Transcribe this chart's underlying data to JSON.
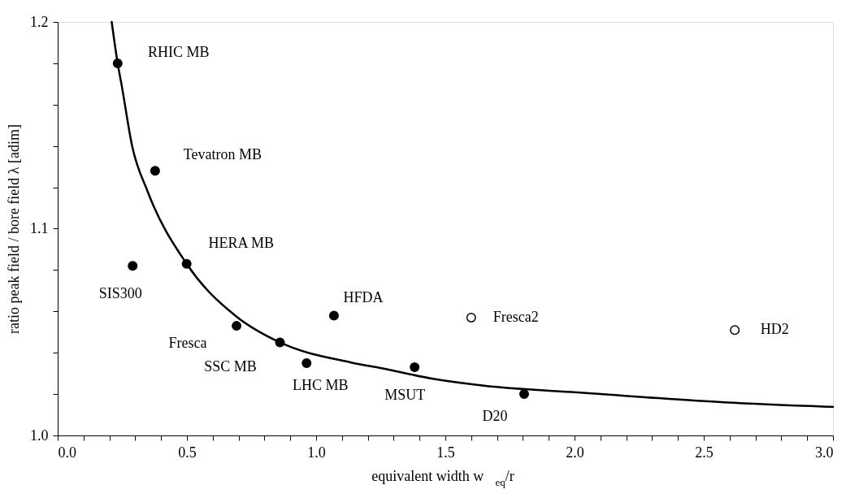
{
  "chart_data": {
    "type": "scatter",
    "xlabel": "equivalent width w$_{eq}$/r",
    "ylabel": "ratio peak field / bore field λ [adim]",
    "xlim": [
      0,
      3.0
    ],
    "ylim": [
      1.0,
      1.2
    ],
    "xticks": [
      {
        "value": 0,
        "label": "0.0"
      },
      {
        "value": 0.1,
        "label": null
      },
      {
        "value": 0.2,
        "label": null
      },
      {
        "value": 0.3,
        "label": null
      },
      {
        "value": 0.4,
        "label": null
      },
      0.5,
      {
        "value": 0.6,
        "label": null
      },
      {
        "value": 0.7,
        "label": null
      },
      {
        "value": 0.8,
        "label": null
      },
      {
        "value": 0.9,
        "label": null
      },
      {
        "value": 1,
        "label": "1.0"
      },
      {
        "value": 1.1,
        "label": null
      },
      {
        "value": 1.2,
        "label": null
      },
      {
        "value": 1.3,
        "label": null
      },
      {
        "value": 1.4,
        "label": null
      },
      1.5,
      {
        "value": 1.6,
        "label": null
      },
      {
        "value": 1.7,
        "label": null
      },
      {
        "value": 1.8,
        "label": null
      },
      {
        "value": 1.9,
        "label": null
      },
      {
        "value": 2,
        "label": "2.0"
      },
      {
        "value": 2.1,
        "label": null
      },
      {
        "value": 2.2,
        "label": null
      },
      {
        "value": 2.3,
        "label": null
      },
      {
        "value": 2.4,
        "label": null
      },
      2.5,
      {
        "value": 2.6,
        "label": null
      },
      {
        "value": 2.7,
        "label": null
      },
      {
        "value": 2.8,
        "label": null
      },
      {
        "value": 2.9,
        "label": null
      },
      {
        "value": 3,
        "label": "3.0"
      }
    ],
    "yticks": [
      {
        "value": 1,
        "label": "1.0"
      },
      {
        "value": 1.02,
        "label": null
      },
      {
        "value": 1.04,
        "label": null
      },
      {
        "value": 1.06,
        "label": null
      },
      {
        "value": 1.08,
        "label": null
      },
      1.1,
      {
        "value": 1.12,
        "label": null
      },
      {
        "value": 1.14,
        "label": null
      },
      {
        "value": 1.16,
        "label": null
      },
      {
        "value": 1.18,
        "label": null
      },
      1.2
    ],
    "grid": false,
    "series": [
      {
        "type": "line",
        "color": "#000000",
        "marker": "none",
        "x": [
          0.209,
          0.232,
          0.248,
          0.288,
          0.348,
          0.499,
          0.692,
          0.86,
          1.135,
          1.258,
          1.457,
          1.656,
          1.987,
          2.25,
          2.58,
          3.0
        ],
        "values": [
          1.2,
          1.18,
          1.169,
          1.14,
          1.118,
          1.083,
          1.0575,
          1.045,
          1.0353,
          1.0324,
          1.0273,
          1.024,
          1.021,
          1.0187,
          1.016,
          1.0138
        ]
      },
      {
        "color": "#000000",
        "marker": "circle",
        "x": [
          0.232,
          0.377,
          0.29,
          0.499,
          0.692,
          0.86,
          0.963,
          1.069,
          1.381,
          1.805
        ],
        "values": [
          1.18,
          1.128,
          1.082,
          1.083,
          1.053,
          1.045,
          1.035,
          1.058,
          1.033,
          1.02
        ]
      },
      {
        "color": "#ffffff",
        "marker": "circle",
        "x": [
          1.6,
          2.62
        ],
        "values": [
          1.057,
          1.051
        ]
      }
    ],
    "annotations": [
      {
        "text": "RHIC MB",
        "x": 0.232,
        "y": 1.18
      },
      {
        "text": "Tevatron MB",
        "x": 0.377,
        "y": 1.128
      },
      {
        "text": "HERA MB",
        "x": 0.499,
        "y": 1.083
      },
      {
        "text": "SIS300",
        "x": 0.29,
        "y": 1.082
      },
      {
        "text": "HFDA",
        "x": 1.069,
        "y": 1.058
      },
      {
        "text": "Fresca2",
        "x": 1.6,
        "y": 1.057
      },
      {
        "text": "HD2",
        "x": 2.62,
        "y": 1.051
      },
      {
        "text": "Fresca",
        "x": 0.692,
        "y": 1.053
      },
      {
        "text": "SSC MB",
        "x": 0.86,
        "y": 1.045
      },
      {
        "text": "LHC MB",
        "x": 0.963,
        "y": 1.035
      },
      {
        "text": "MSUT",
        "x": 1.381,
        "y": 1.033
      },
      {
        "text": "D20",
        "x": 1.805,
        "y": 1.02
      }
    ]
  }
}
